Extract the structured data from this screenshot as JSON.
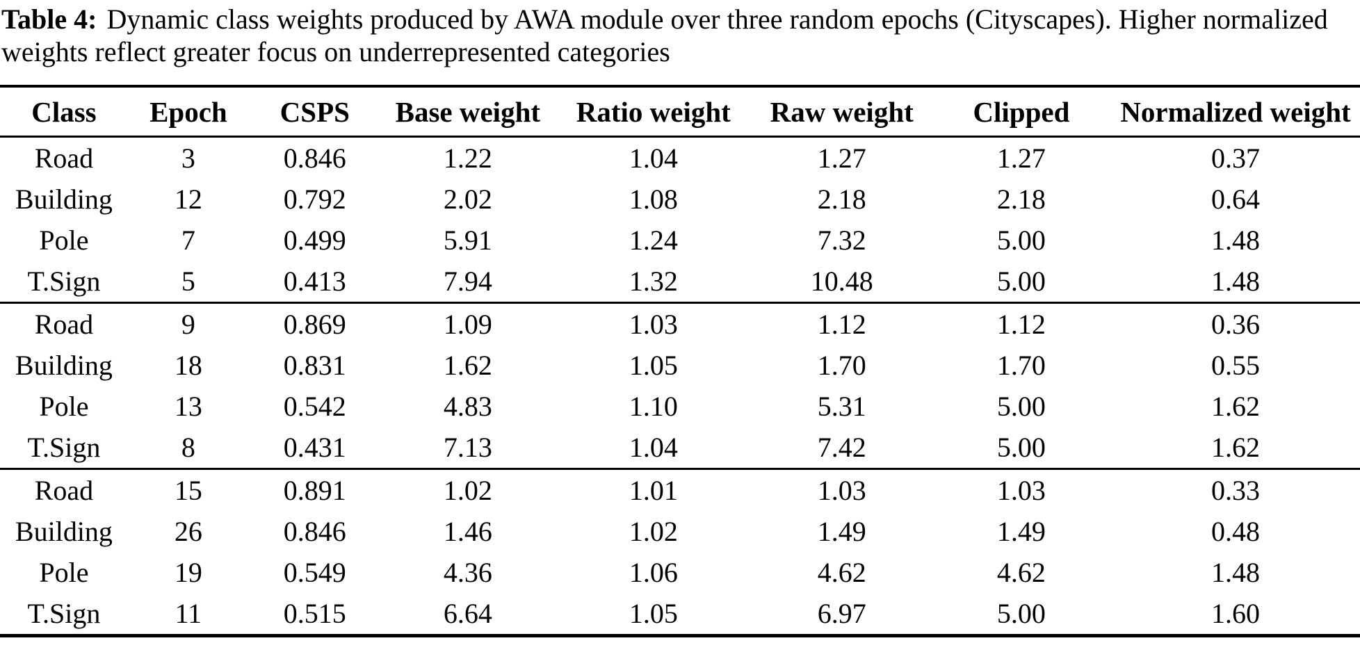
{
  "caption": {
    "label": "Table 4:",
    "text": "Dynamic class weights produced by AWA module over three random epochs (Cityscapes). Higher normalized weights reflect greater focus on underrepresented categories"
  },
  "table": {
    "columns": [
      "Class",
      "Epoch",
      "CSPS",
      "Base weight",
      "Ratio weight",
      "Raw weight",
      "Clipped",
      "Normalized weight"
    ],
    "groups": [
      {
        "rows": [
          [
            "Road",
            "3",
            "0.846",
            "1.22",
            "1.04",
            "1.27",
            "1.27",
            "0.37"
          ],
          [
            "Building",
            "12",
            "0.792",
            "2.02",
            "1.08",
            "2.18",
            "2.18",
            "0.64"
          ],
          [
            "Pole",
            "7",
            "0.499",
            "5.91",
            "1.24",
            "7.32",
            "5.00",
            "1.48"
          ],
          [
            "T.Sign",
            "5",
            "0.413",
            "7.94",
            "1.32",
            "10.48",
            "5.00",
            "1.48"
          ]
        ]
      },
      {
        "rows": [
          [
            "Road",
            "9",
            "0.869",
            "1.09",
            "1.03",
            "1.12",
            "1.12",
            "0.36"
          ],
          [
            "Building",
            "18",
            "0.831",
            "1.62",
            "1.05",
            "1.70",
            "1.70",
            "0.55"
          ],
          [
            "Pole",
            "13",
            "0.542",
            "4.83",
            "1.10",
            "5.31",
            "5.00",
            "1.62"
          ],
          [
            "T.Sign",
            "8",
            "0.431",
            "7.13",
            "1.04",
            "7.42",
            "5.00",
            "1.62"
          ]
        ]
      },
      {
        "rows": [
          [
            "Road",
            "15",
            "0.891",
            "1.02",
            "1.01",
            "1.03",
            "1.03",
            "0.33"
          ],
          [
            "Building",
            "26",
            "0.846",
            "1.46",
            "1.02",
            "1.49",
            "1.49",
            "0.48"
          ],
          [
            "Pole",
            "19",
            "0.549",
            "4.36",
            "1.06",
            "4.62",
            "4.62",
            "1.48"
          ],
          [
            "T.Sign",
            "11",
            "0.515",
            "6.64",
            "1.05",
            "6.97",
            "5.00",
            "1.60"
          ]
        ]
      }
    ]
  },
  "colors": {
    "text": "#000000",
    "background": "#ffffff",
    "rule": "#000000"
  }
}
